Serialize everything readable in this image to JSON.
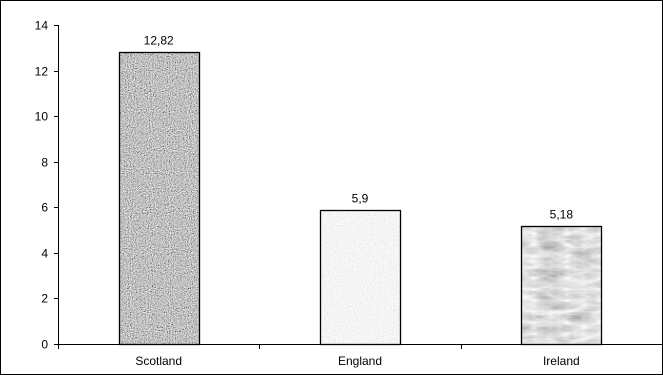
{
  "chart_data": {
    "type": "bar",
    "categories": [
      "Scotland",
      "England",
      "Ireland"
    ],
    "values": [
      12.82,
      5.9,
      5.18
    ],
    "value_labels": [
      "12,82",
      "5,9",
      "5,18"
    ],
    "title": "",
    "xlabel": "",
    "ylabel": "",
    "ylim": [
      0,
      14
    ],
    "yticks": [
      0,
      2,
      4,
      6,
      8,
      10,
      12,
      14
    ],
    "grid": false,
    "legend": "none",
    "bar_fills": [
      "dark-granite",
      "light-speckle",
      "marble"
    ]
  }
}
